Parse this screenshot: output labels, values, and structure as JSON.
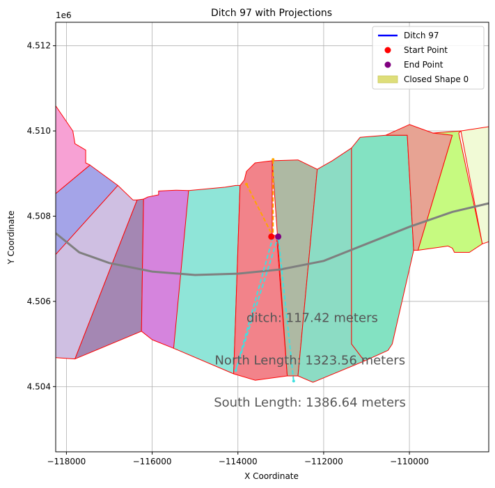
{
  "chart_data": {
    "type": "scatter",
    "title": "Ditch 97 with Projections",
    "xlabel": "X Coordinate",
    "ylabel": "Y Coordinate",
    "y_offset_label": "1e6",
    "xlim": [
      -118250,
      -108150
    ],
    "ylim": [
      4502470,
      4512550
    ],
    "x_ticks": [
      {
        "value": -118000,
        "label": "−118000"
      },
      {
        "value": -116000,
        "label": "−116000"
      },
      {
        "value": -114000,
        "label": "−114000"
      },
      {
        "value": -112000,
        "label": "−112000"
      },
      {
        "value": -110000,
        "label": "−110000"
      }
    ],
    "y_ticks": [
      {
        "value": 4504000,
        "label": "4.504"
      },
      {
        "value": 4506000,
        "label": "4.506"
      },
      {
        "value": 4508000,
        "label": "4.508"
      },
      {
        "value": 4510000,
        "label": "4.510"
      },
      {
        "value": 4512000,
        "label": "4.512"
      }
    ],
    "grid": true,
    "legend_position": "top-right",
    "legend": [
      {
        "label": "Ditch 97",
        "kind": "line",
        "color": "#0000ff"
      },
      {
        "label": "Start Point",
        "kind": "dot",
        "color": "#ff0000"
      },
      {
        "label": "End Point",
        "kind": "dot",
        "color": "#800080"
      },
      {
        "label": "Closed Shape 0",
        "kind": "patch",
        "color": "#dede7a"
      }
    ],
    "polygons": [
      {
        "fill": "#f7a1d4",
        "points": [
          [
            -118250,
            4510590
          ],
          [
            -117850,
            4510000
          ],
          [
            -117800,
            4509700
          ],
          [
            -117550,
            4509550
          ],
          [
            -117550,
            4509250
          ],
          [
            -117450,
            4509200
          ],
          [
            -118250,
            4508530
          ]
        ]
      },
      {
        "fill": "#a4a4e8",
        "points": [
          [
            -118250,
            4508530
          ],
          [
            -117450,
            4509200
          ],
          [
            -116800,
            4508720
          ],
          [
            -118250,
            4507100
          ]
        ]
      },
      {
        "fill": "#cfbfe2",
        "points": [
          [
            -118250,
            4507100
          ],
          [
            -116800,
            4508720
          ],
          [
            -116450,
            4508380
          ],
          [
            -116350,
            4508380
          ],
          [
            -117800,
            4504650
          ],
          [
            -118250,
            4504680
          ]
        ]
      },
      {
        "fill": "#a487b3",
        "points": [
          [
            -117800,
            4504650
          ],
          [
            -116350,
            4508380
          ],
          [
            -116200,
            4508400
          ],
          [
            -116250,
            4505300
          ]
        ]
      },
      {
        "fill": "#d584dd",
        "points": [
          [
            -116200,
            4508400
          ],
          [
            -116100,
            4508450
          ],
          [
            -115850,
            4508500
          ],
          [
            -115850,
            4508590
          ],
          [
            -115450,
            4508610
          ],
          [
            -115150,
            4508600
          ],
          [
            -115150,
            4507450
          ],
          [
            -115500,
            4504900
          ],
          [
            -116000,
            4505100
          ],
          [
            -116250,
            4505300
          ]
        ]
      },
      {
        "fill": "#8fe5d8",
        "points": [
          [
            -115150,
            4508600
          ],
          [
            -114300,
            4508680
          ],
          [
            -114050,
            4508720
          ],
          [
            -113950,
            4508720
          ],
          [
            -114100,
            4504300
          ],
          [
            -115500,
            4504900
          ]
        ]
      },
      {
        "fill": "#f2838a",
        "points": [
          [
            -113950,
            4508720
          ],
          [
            -113850,
            4508850
          ],
          [
            -113800,
            4509050
          ],
          [
            -113600,
            4509250
          ],
          [
            -113200,
            4509300
          ],
          [
            -113200,
            4507550
          ],
          [
            -113100,
            4507550
          ],
          [
            -112850,
            4504250
          ],
          [
            -113600,
            4504150
          ],
          [
            -114100,
            4504300
          ]
        ]
      },
      {
        "fill": "#aeb9a3",
        "points": [
          [
            -113200,
            4509300
          ],
          [
            -112600,
            4509320
          ],
          [
            -112150,
            4509100
          ],
          [
            -112600,
            4504250
          ],
          [
            -112850,
            4504250
          ]
        ]
      },
      {
        "fill": "#8cdcc4",
        "points": [
          [
            -112150,
            4509100
          ],
          [
            -111800,
            4509300
          ],
          [
            -111350,
            4509600
          ],
          [
            -111350,
            4505000
          ],
          [
            -111050,
            4504600
          ],
          [
            -112250,
            4504100
          ],
          [
            -112600,
            4504250
          ]
        ]
      },
      {
        "fill": "#83e2c2",
        "points": [
          [
            -111350,
            4509600
          ],
          [
            -111150,
            4509850
          ],
          [
            -110550,
            4509900
          ],
          [
            -110050,
            4509900
          ],
          [
            -109900,
            4507200
          ],
          [
            -110400,
            4505000
          ],
          [
            -110500,
            4504850
          ],
          [
            -111050,
            4504600
          ],
          [
            -111350,
            4505000
          ]
        ]
      },
      {
        "fill": "#e7a393",
        "points": [
          [
            -110550,
            4509900
          ],
          [
            -110000,
            4510150
          ],
          [
            -109450,
            4509950
          ],
          [
            -109000,
            4509950
          ],
          [
            -109000,
            4509900
          ],
          [
            -109800,
            4507200
          ],
          [
            -109900,
            4507200
          ],
          [
            -110050,
            4509900
          ]
        ]
      },
      {
        "fill": "#c6fa80",
        "points": [
          [
            -109450,
            4509950
          ],
          [
            -108800,
            4510000
          ],
          [
            -108850,
            4509950
          ],
          [
            -108300,
            4507350
          ],
          [
            -108600,
            4507150
          ],
          [
            -108950,
            4507150
          ],
          [
            -109000,
            4507250
          ],
          [
            -109100,
            4507300
          ],
          [
            -109800,
            4507200
          ],
          [
            -109000,
            4509900
          ]
        ]
      },
      {
        "fill": "#f1fad6",
        "points": [
          [
            -108800,
            4510000
          ],
          [
            -108150,
            4510100
          ],
          [
            -108150,
            4507400
          ],
          [
            -108300,
            4507350
          ]
        ]
      }
    ],
    "centerline": [
      [
        -118250,
        4507600
      ],
      [
        -117700,
        4507150
      ],
      [
        -117000,
        4506900
      ],
      [
        -116000,
        4506700
      ],
      [
        -115000,
        4506620
      ],
      [
        -114000,
        4506650
      ],
      [
        -113000,
        4506750
      ],
      [
        -112000,
        4506950
      ],
      [
        -111000,
        4507350
      ],
      [
        -110000,
        4507750
      ],
      [
        -109000,
        4508100
      ],
      [
        -108150,
        4508300
      ]
    ],
    "projection_north": [
      [
        -113800,
        4508750
      ],
      [
        -113180,
        4507520
      ],
      [
        -113180,
        4509330
      ]
    ],
    "projection_south": [
      [
        -113180,
        4507520
      ],
      [
        -114050,
        4504380
      ],
      [
        -113060,
        4507520
      ],
      [
        -112700,
        4504130
      ]
    ],
    "start_point": [
      -113220,
      4507520
    ],
    "end_point": [
      -113060,
      4507520
    ],
    "annotations": [
      {
        "text": "ditch: 117.42 meters",
        "x": -113800,
        "y": 4505520
      },
      {
        "text": "North Length: 1323.56 meters",
        "x": -114540,
        "y": 4504520
      },
      {
        "text": "South Length: 1386.64 meters",
        "x": -114560,
        "y": 4503530
      }
    ],
    "colors": {
      "projection_north": "#ffa500",
      "projection_south": "#40e0e0",
      "outline": "#ff0000",
      "centerline": "#7f7f7f",
      "annotation": "#555555"
    }
  }
}
